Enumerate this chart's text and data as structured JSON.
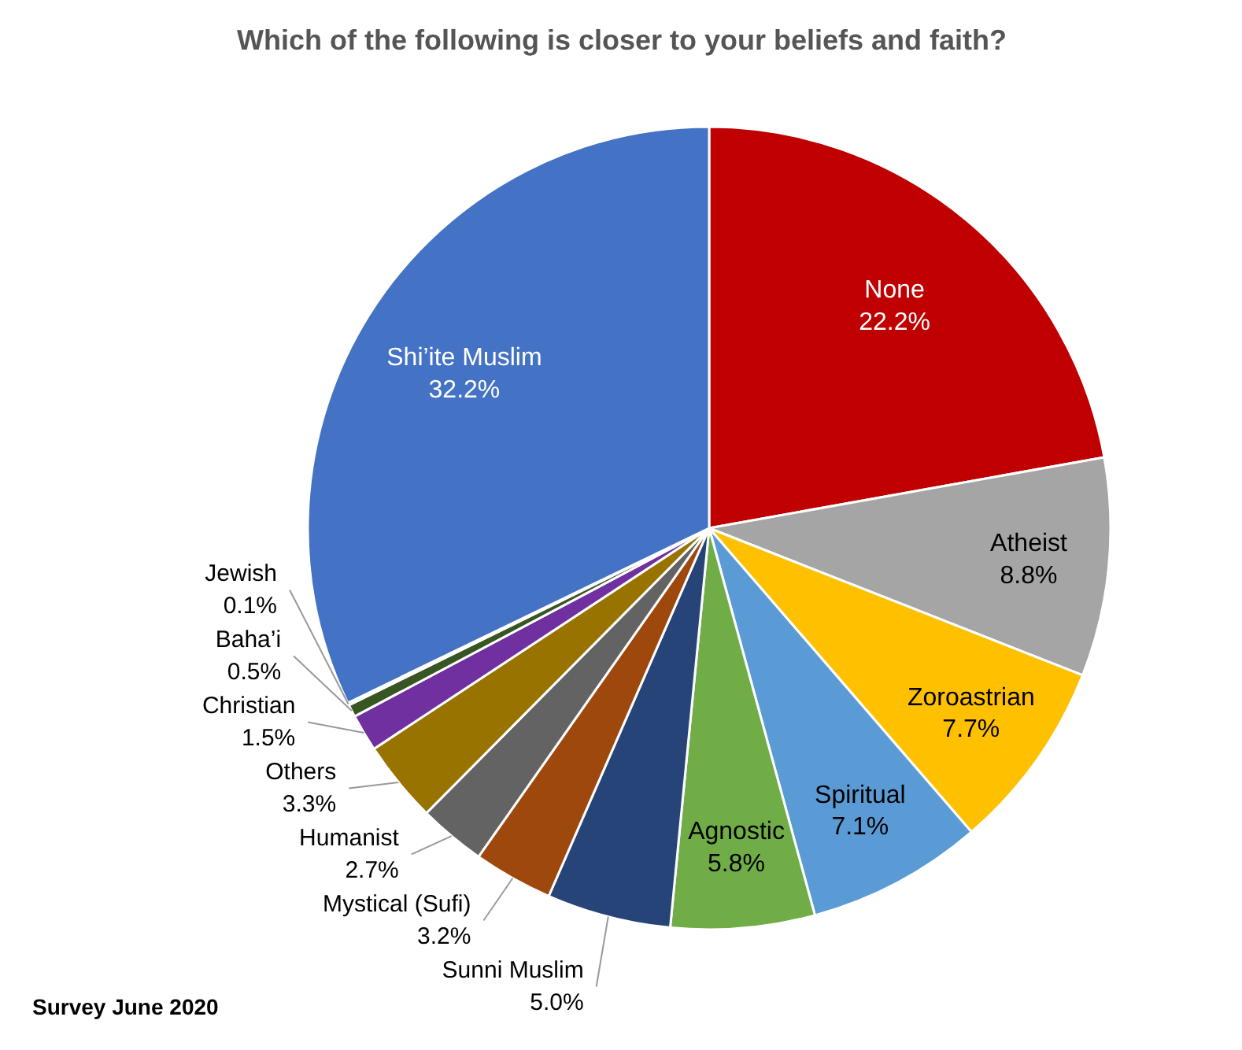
{
  "chart_data": {
    "type": "pie",
    "title": "Which of the following is closer to your beliefs and faith?",
    "categories": [
      "None",
      "Atheist",
      "Zoroastrian",
      "Spiritual",
      "Agnostic",
      "Sunni Muslim",
      "Mystical (Sufi)",
      "Humanist",
      "Others",
      "Christian",
      "Baha’i",
      "Jewish",
      "Shi’ite Muslim"
    ],
    "values": [
      22.2,
      8.8,
      7.7,
      7.1,
      5.8,
      5.0,
      3.2,
      2.7,
      3.3,
      1.5,
      0.5,
      0.1,
      32.2
    ],
    "value_labels": [
      "22.2%",
      "8.8%",
      "7.7%",
      "7.1%",
      "5.8%",
      "5.0%",
      "3.2%",
      "2.7%",
      "3.3%",
      "1.5%",
      "0.5%",
      "0.1%",
      "32.2%"
    ],
    "colors": [
      "#c00000",
      "#a5a5a5",
      "#ffc000",
      "#5b9bd5",
      "#70ad47",
      "#264478",
      "#9e480e",
      "#636363",
      "#997300",
      "#7030a0",
      "#375623",
      "#a9d18e",
      "#4472c4"
    ],
    "annotations": [
      "Survey June 2020"
    ]
  }
}
